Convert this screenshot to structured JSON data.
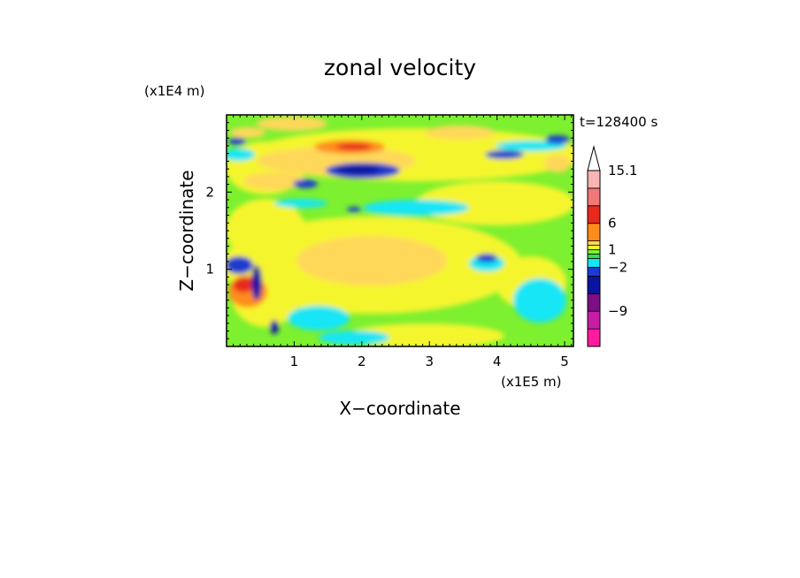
{
  "chart_data": {
    "type": "heatmap",
    "title": "zonal velocity",
    "xlabel": "X−coordinate",
    "ylabel": "Z−coordinate",
    "x_unit": "(x1E5 m)",
    "y_unit": "(x1E4 m)",
    "annotation": "t=128400 s",
    "xlim": [
      0,
      5.13
    ],
    "ylim": [
      0,
      3.0
    ],
    "x_ticks": [
      1,
      2,
      3,
      4,
      5
    ],
    "y_ticks": [
      1,
      2
    ],
    "colorbar": {
      "extend": "max",
      "levels": [
        -15,
        -12,
        -9,
        -6,
        -3,
        -2,
        -1,
        0,
        1,
        2,
        3,
        6,
        9,
        12,
        15.1
      ],
      "labels": [
        "15.1",
        "6",
        "1",
        "−2",
        "−9"
      ],
      "colors": [
        "#ff1aa0",
        "#c81ea5",
        "#7d0e85",
        "#0a14a0",
        "#1c3cd0",
        "#12e6f5",
        "#2fe050",
        "#7df02f",
        "#f5f52d",
        "#ffd85a",
        "#ff8c1a",
        "#e82a1e",
        "#f07878",
        "#f8b4b4"
      ]
    },
    "grid": false,
    "features": [
      {
        "kind": "jet",
        "sign": "positive",
        "x": 1.7,
        "z": 2.6,
        "value": 9
      },
      {
        "kind": "jet",
        "sign": "negative",
        "x": 1.9,
        "z": 2.3,
        "value": -9
      },
      {
        "kind": "band",
        "sign": "positive",
        "x": 2.5,
        "z": 1.2,
        "value": 3
      },
      {
        "kind": "band",
        "sign": "negative",
        "x": 0.4,
        "z": 1.0,
        "value": -9
      }
    ]
  }
}
